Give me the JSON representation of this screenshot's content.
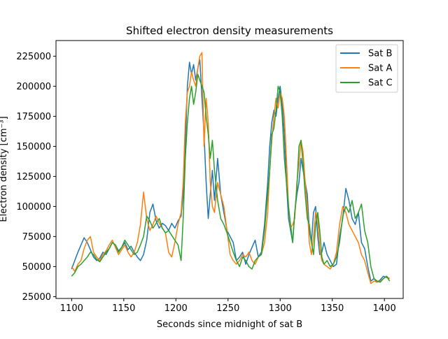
{
  "chart_data": {
    "type": "line",
    "title": "Shifted electron density measurements",
    "xlabel": "Seconds since midnight of sat B",
    "ylabel": "Electron density [cm⁻³]",
    "xlim": [
      1085,
      1418
    ],
    "ylim": [
      23500,
      238000
    ],
    "xticks": [
      1100,
      1150,
      1200,
      1250,
      1300,
      1350,
      1400
    ],
    "yticks": [
      25000,
      50000,
      75000,
      100000,
      125000,
      150000,
      175000,
      200000,
      225000
    ],
    "grid": false,
    "legend_position": "top-right",
    "series": [
      {
        "name": "Sat B",
        "color": "#1f77b4",
        "x": [
          1100,
          1103,
          1106,
          1109,
          1112,
          1115,
          1118,
          1121,
          1124,
          1127,
          1130,
          1133,
          1136,
          1139,
          1142,
          1145,
          1148,
          1151,
          1154,
          1157,
          1160,
          1163,
          1166,
          1169,
          1172,
          1175,
          1178,
          1181,
          1184,
          1187,
          1190,
          1193,
          1196,
          1199,
          1202,
          1205,
          1207,
          1209,
          1211,
          1213,
          1215,
          1217,
          1219,
          1221,
          1223,
          1225,
          1227,
          1229,
          1231,
          1233,
          1235,
          1237,
          1240,
          1243,
          1246,
          1249,
          1252,
          1255,
          1258,
          1261,
          1264,
          1267,
          1270,
          1273,
          1276,
          1279,
          1282,
          1285,
          1288,
          1290,
          1292,
          1294,
          1296,
          1298,
          1300,
          1302,
          1304,
          1306,
          1308,
          1310,
          1312,
          1314,
          1316,
          1318,
          1320,
          1322,
          1324,
          1326,
          1328,
          1330,
          1332,
          1334,
          1336,
          1338,
          1340,
          1342,
          1345,
          1348,
          1351,
          1354,
          1357,
          1360,
          1363,
          1366,
          1369,
          1372,
          1375,
          1378,
          1381,
          1384,
          1387,
          1390,
          1393,
          1396,
          1399,
          1402,
          1405
        ],
        "y": [
          48000,
          55000,
          62000,
          68000,
          74000,
          70000,
          64000,
          58000,
          55000,
          57000,
          62000,
          60000,
          65000,
          70000,
          68000,
          63000,
          66000,
          70000,
          64000,
          67000,
          62000,
          58000,
          55000,
          60000,
          72000,
          95000,
          102000,
          88000,
          82000,
          86000,
          84000,
          80000,
          86000,
          82000,
          88000,
          92000,
          110000,
          150000,
          200000,
          220000,
          210000,
          218000,
          205000,
          215000,
          222000,
          190000,
          160000,
          120000,
          90000,
          110000,
          130000,
          105000,
          140000,
          110000,
          95000,
          80000,
          75000,
          70000,
          55000,
          58000,
          62000,
          52000,
          60000,
          66000,
          72000,
          58000,
          62000,
          85000,
          120000,
          150000,
          170000,
          180000,
          175000,
          190000,
          200000,
          185000,
          160000,
          120000,
          90000,
          80000,
          70000,
          95000,
          110000,
          120000,
          140000,
          130000,
          120000,
          110000,
          80000,
          70000,
          95000,
          100000,
          75000,
          60000,
          62000,
          70000,
          60000,
          55000,
          50000,
          52000,
          75000,
          90000,
          115000,
          105000,
          90000,
          85000,
          95000,
          70000,
          65000,
          50000,
          38000,
          40000,
          37000,
          39000,
          42000,
          41000,
          40000
        ]
      },
      {
        "name": "Sat A",
        "color": "#ff7f0e",
        "x": [
          1100,
          1103,
          1106,
          1109,
          1112,
          1115,
          1118,
          1121,
          1124,
          1127,
          1130,
          1133,
          1136,
          1139,
          1142,
          1145,
          1148,
          1151,
          1154,
          1157,
          1160,
          1163,
          1166,
          1169,
          1172,
          1175,
          1178,
          1181,
          1184,
          1187,
          1190,
          1193,
          1196,
          1199,
          1202,
          1205,
          1207,
          1209,
          1211,
          1213,
          1215,
          1217,
          1219,
          1221,
          1223,
          1225,
          1227,
          1229,
          1231,
          1233,
          1235,
          1237,
          1240,
          1243,
          1246,
          1249,
          1252,
          1255,
          1258,
          1261,
          1264,
          1267,
          1270,
          1273,
          1276,
          1279,
          1282,
          1285,
          1288,
          1290,
          1292,
          1294,
          1296,
          1298,
          1300,
          1302,
          1304,
          1306,
          1308,
          1310,
          1312,
          1314,
          1316,
          1318,
          1320,
          1322,
          1324,
          1326,
          1328,
          1330,
          1332,
          1334,
          1336,
          1338,
          1340,
          1342,
          1345,
          1348,
          1351,
          1354,
          1357,
          1360,
          1363,
          1366,
          1369,
          1372,
          1375,
          1378,
          1381,
          1384,
          1387,
          1390,
          1393,
          1396,
          1399,
          1402,
          1405
        ],
        "y": [
          50000,
          46000,
          52000,
          55000,
          65000,
          72000,
          75000,
          62000,
          58000,
          55000,
          60000,
          63000,
          68000,
          72000,
          66000,
          60000,
          64000,
          68000,
          62000,
          58000,
          62000,
          70000,
          85000,
          112000,
          90000,
          80000,
          85000,
          92000,
          86000,
          82000,
          78000,
          62000,
          58000,
          70000,
          85000,
          95000,
          120000,
          170000,
          195000,
          200000,
          212000,
          205000,
          200000,
          215000,
          225000,
          228000,
          150000,
          190000,
          170000,
          120000,
          100000,
          95000,
          120000,
          110000,
          100000,
          80000,
          60000,
          55000,
          52000,
          55000,
          60000,
          58000,
          62000,
          55000,
          52000,
          58000,
          60000,
          70000,
          95000,
          130000,
          155000,
          175000,
          190000,
          182000,
          195000,
          190000,
          175000,
          140000,
          100000,
          82000,
          85000,
          90000,
          120000,
          135000,
          155000,
          145000,
          120000,
          100000,
          70000,
          60000,
          75000,
          95000,
          90000,
          65000,
          55000,
          52000,
          50000,
          48000,
          52000,
          62000,
          85000,
          100000,
          95000,
          85000,
          80000,
          75000,
          70000,
          60000,
          55000,
          45000,
          36000,
          38000,
          37000,
          38000,
          40000,
          42000,
          40000
        ]
      },
      {
        "name": "Sat C",
        "color": "#2ca02c",
        "x": [
          1100,
          1103,
          1106,
          1109,
          1112,
          1115,
          1118,
          1121,
          1124,
          1127,
          1130,
          1133,
          1136,
          1139,
          1142,
          1145,
          1148,
          1151,
          1154,
          1157,
          1160,
          1163,
          1166,
          1169,
          1172,
          1175,
          1178,
          1181,
          1184,
          1187,
          1190,
          1193,
          1196,
          1199,
          1202,
          1205,
          1207,
          1209,
          1211,
          1213,
          1215,
          1217,
          1219,
          1221,
          1223,
          1225,
          1227,
          1229,
          1231,
          1233,
          1235,
          1237,
          1240,
          1243,
          1246,
          1249,
          1252,
          1255,
          1258,
          1261,
          1264,
          1267,
          1270,
          1273,
          1276,
          1279,
          1282,
          1285,
          1288,
          1290,
          1292,
          1294,
          1296,
          1298,
          1300,
          1302,
          1304,
          1306,
          1308,
          1310,
          1312,
          1314,
          1316,
          1318,
          1320,
          1322,
          1324,
          1326,
          1328,
          1330,
          1332,
          1334,
          1336,
          1338,
          1340,
          1342,
          1345,
          1348,
          1351,
          1354,
          1357,
          1360,
          1363,
          1366,
          1369,
          1372,
          1375,
          1378,
          1381,
          1384,
          1387,
          1390,
          1393,
          1396,
          1399,
          1402,
          1405
        ],
        "y": [
          42000,
          45000,
          50000,
          52000,
          55000,
          58000,
          62000,
          60000,
          56000,
          54000,
          58000,
          62000,
          65000,
          70000,
          68000,
          62000,
          66000,
          72000,
          68000,
          64000,
          60000,
          62000,
          68000,
          75000,
          92000,
          88000,
          82000,
          86000,
          90000,
          82000,
          78000,
          80000,
          76000,
          72000,
          68000,
          55000,
          90000,
          140000,
          170000,
          190000,
          200000,
          185000,
          195000,
          210000,
          205000,
          200000,
          195000,
          175000,
          160000,
          140000,
          155000,
          130000,
          105000,
          90000,
          85000,
          78000,
          70000,
          62000,
          55000,
          50000,
          58000,
          55000,
          50000,
          48000,
          55000,
          58000,
          60000,
          80000,
          110000,
          130000,
          160000,
          165000,
          180000,
          200000,
          195000,
          175000,
          140000,
          120000,
          100000,
          85000,
          70000,
          95000,
          115000,
          150000,
          155000,
          135000,
          110000,
          90000,
          85000,
          70000,
          60000,
          85000,
          95000,
          80000,
          58000,
          52000,
          55000,
          50000,
          52000,
          58000,
          70000,
          92000,
          100000,
          95000,
          105000,
          90000,
          95000,
          102000,
          80000,
          70000,
          50000,
          40000,
          38000,
          37000,
          40000,
          42000,
          38000
        ]
      }
    ]
  }
}
